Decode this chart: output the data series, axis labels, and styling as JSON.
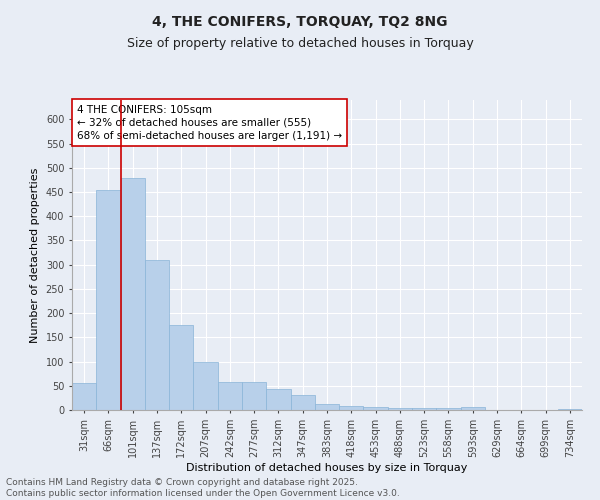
{
  "title_line1": "4, THE CONIFERS, TORQUAY, TQ2 8NG",
  "title_line2": "Size of property relative to detached houses in Torquay",
  "xlabel": "Distribution of detached houses by size in Torquay",
  "ylabel": "Number of detached properties",
  "bar_labels": [
    "31sqm",
    "66sqm",
    "101sqm",
    "137sqm",
    "172sqm",
    "207sqm",
    "242sqm",
    "277sqm",
    "312sqm",
    "347sqm",
    "383sqm",
    "418sqm",
    "453sqm",
    "488sqm",
    "523sqm",
    "558sqm",
    "593sqm",
    "629sqm",
    "664sqm",
    "699sqm",
    "734sqm"
  ],
  "bar_values": [
    55,
    455,
    478,
    310,
    175,
    100,
    58,
    58,
    43,
    30,
    13,
    8,
    7,
    5,
    5,
    5,
    7,
    1,
    0,
    0,
    2
  ],
  "bar_color": "#b8d0ea",
  "bar_edge_color": "#89b4d8",
  "vline_color": "#cc0000",
  "annotation_text": "4 THE CONIFERS: 105sqm\n← 32% of detached houses are smaller (555)\n68% of semi-detached houses are larger (1,191) →",
  "annotation_box_facecolor": "#ffffff",
  "annotation_box_edgecolor": "#cc0000",
  "ylim_max": 640,
  "yticks": [
    0,
    50,
    100,
    150,
    200,
    250,
    300,
    350,
    400,
    450,
    500,
    550,
    600
  ],
  "bg_color": "#e8edf5",
  "plot_bg_color": "#e8edf5",
  "footer_line1": "Contains HM Land Registry data © Crown copyright and database right 2025.",
  "footer_line2": "Contains public sector information licensed under the Open Government Licence v3.0.",
  "title_fontsize": 10,
  "subtitle_fontsize": 9,
  "axis_label_fontsize": 8,
  "tick_fontsize": 7,
  "annotation_fontsize": 7.5,
  "footer_fontsize": 6.5,
  "ylabel_fontsize": 8
}
